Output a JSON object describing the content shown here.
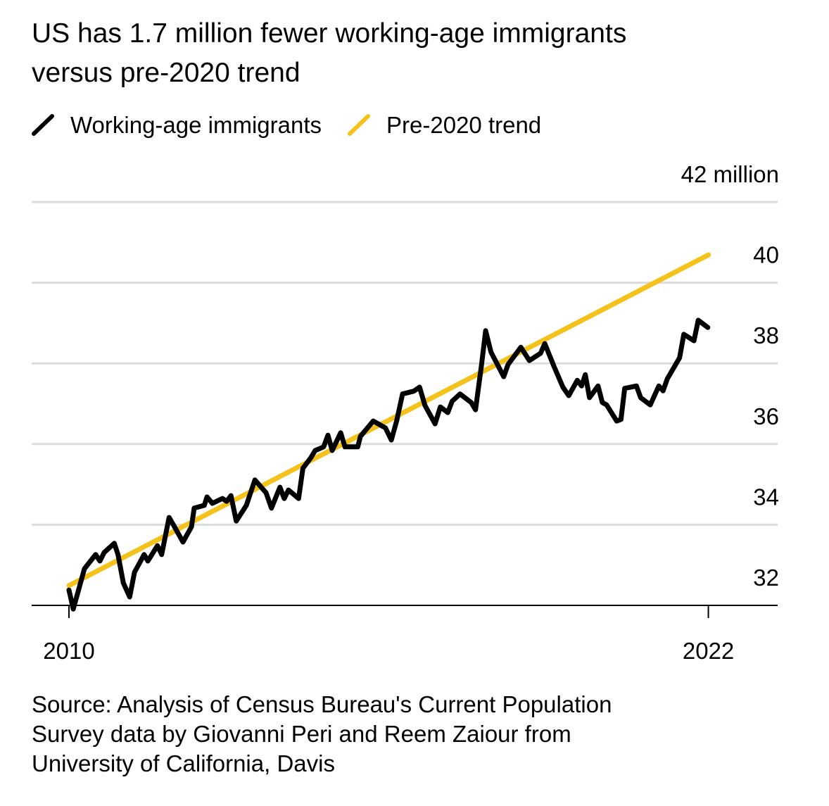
{
  "chart_data": {
    "type": "line",
    "title": [
      "US has 1.7 million fewer working-age immigrants",
      "versus pre-2020 trend"
    ],
    "source": [
      "Source: Analysis of Census Bureau's Current Population",
      "Survey data by Giovanni Peri and Reem Zaiour from",
      "University of California, Davis"
    ],
    "xlim": [
      2009.3,
      2023.3
    ],
    "xticks": [
      2010,
      2022
    ],
    "ylim": [
      32,
      42
    ],
    "yticks": [
      32,
      34,
      36,
      38,
      40,
      {
        "value": 42,
        "label": "42 million"
      }
    ],
    "grid": true,
    "legend": "top-left",
    "series": [
      {
        "name": "Working-age immigrants",
        "color": "#000000",
        "x": [
          2010.0,
          2010.08,
          2010.29,
          2010.5,
          2010.58,
          2010.66,
          2010.85,
          2010.92,
          2011.02,
          2011.14,
          2011.23,
          2011.41,
          2011.48,
          2011.66,
          2011.74,
          2011.88,
          2011.98,
          2012.14,
          2012.3,
          2012.35,
          2012.54,
          2012.59,
          2012.69,
          2012.88,
          2012.96,
          2013.04,
          2013.14,
          2013.33,
          2013.49,
          2013.7,
          2013.8,
          2013.96,
          2014.04,
          2014.12,
          2014.31,
          2014.39,
          2014.54,
          2014.62,
          2014.78,
          2014.86,
          2014.94,
          2015.1,
          2015.18,
          2015.42,
          2015.47,
          2015.71,
          2015.94,
          2016.05,
          2016.15,
          2016.26,
          2016.47,
          2016.58,
          2016.68,
          2016.87,
          2016.97,
          2017.11,
          2017.19,
          2017.34,
          2017.55,
          2017.63,
          2017.74,
          2017.82,
          2017.92,
          2018.16,
          2018.24,
          2018.48,
          2018.64,
          2018.85,
          2018.93,
          2019.11,
          2019.27,
          2019.38,
          2019.54,
          2019.62,
          2019.69,
          2019.77,
          2019.93,
          2020.01,
          2020.09,
          2020.28,
          2020.36,
          2020.43,
          2020.65,
          2020.73,
          2020.91,
          2021.07,
          2021.15,
          2021.23,
          2021.46,
          2021.54,
          2021.73,
          2021.81,
          2021.99
        ],
        "values": [
          32.38,
          31.91,
          32.91,
          33.26,
          33.1,
          33.31,
          33.54,
          33.26,
          32.56,
          32.21,
          32.82,
          33.26,
          33.1,
          33.48,
          33.26,
          34.18,
          33.95,
          33.57,
          33.95,
          34.41,
          34.48,
          34.69,
          34.53,
          34.65,
          34.58,
          34.72,
          34.09,
          34.48,
          35.11,
          34.79,
          34.41,
          34.93,
          34.65,
          34.86,
          34.65,
          35.4,
          35.66,
          35.84,
          35.93,
          36.22,
          35.84,
          36.28,
          35.93,
          35.93,
          36.19,
          36.57,
          36.4,
          36.1,
          36.57,
          37.24,
          37.31,
          37.41,
          36.96,
          36.5,
          36.92,
          36.78,
          37.06,
          37.24,
          37.03,
          36.85,
          37.93,
          38.81,
          38.28,
          37.67,
          37.97,
          38.4,
          38.07,
          38.25,
          38.49,
          37.9,
          37.41,
          37.2,
          37.58,
          37.44,
          37.72,
          37.15,
          37.44,
          37.03,
          36.97,
          36.57,
          36.61,
          37.38,
          37.44,
          37.15,
          36.97,
          37.44,
          37.32,
          37.62,
          38.14,
          38.72,
          38.56,
          39.07,
          38.89
        ]
      },
      {
        "name": "Pre-2020 trend",
        "color": "#f5c21b",
        "x": [
          2010,
          2022
        ],
        "values": [
          32.49,
          40.69
        ]
      }
    ]
  }
}
